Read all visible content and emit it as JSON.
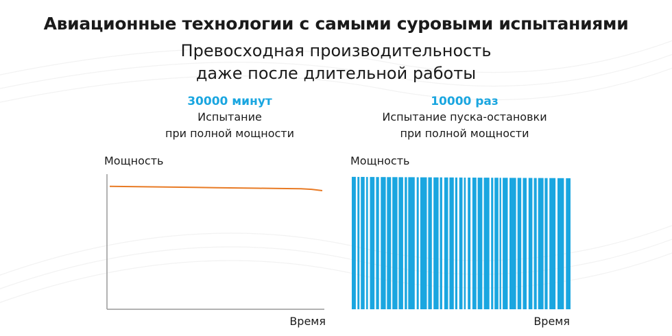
{
  "header": {
    "title": "Авиационные технологии с самыми суровыми испытаниями",
    "subtitle_line1": "Превосходная производительность",
    "subtitle_line2": "даже после длительной работы"
  },
  "chart_data": [
    {
      "type": "line",
      "highlight": "30000 минут",
      "description_line1": "Испытание",
      "description_line2": "при полной мощности",
      "ylabel": "Мощность",
      "xlabel": "Время",
      "grid": false,
      "x": [
        0,
        0.1,
        0.2,
        0.3,
        0.4,
        0.5,
        0.6,
        0.7,
        0.8,
        0.9,
        0.95,
        1.0
      ],
      "values": [
        0.91,
        0.908,
        0.906,
        0.904,
        0.902,
        0.9,
        0.898,
        0.896,
        0.894,
        0.892,
        0.888,
        0.878
      ],
      "ylim": [
        0,
        1
      ],
      "color": "#e87a24"
    },
    {
      "type": "bar",
      "highlight": "10000 раз",
      "description_line1": "Испытание пуска-остановки",
      "description_line2": "при полной мощности",
      "ylabel": "Мощность",
      "xlabel": "Время",
      "grid": false,
      "start_value": 0.98,
      "end_value": 0.97,
      "ylim": [
        0,
        1
      ],
      "color": "#1aa6e0",
      "gap_color": "#ffffff"
    }
  ]
}
